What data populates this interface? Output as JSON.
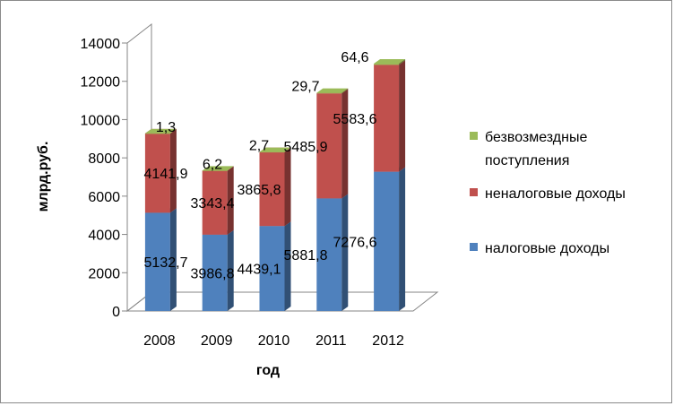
{
  "chart_data": {
    "type": "bar",
    "stacked": true,
    "three_d": true,
    "title": "",
    "xlabel": "год",
    "ylabel": "млрд.руб.",
    "ylim": [
      0,
      14000
    ],
    "yticks": [
      "0",
      "2000",
      "4000",
      "6000",
      "8000",
      "10000",
      "12000",
      "14000"
    ],
    "categories": [
      "2008",
      "2009",
      "2010",
      "2011",
      "2012"
    ],
    "series": [
      {
        "name": "налоговые доходы",
        "color": "#4F81BD",
        "values": [
          5132.7,
          3986.8,
          4439.1,
          5881.8,
          7276.6
        ],
        "labels": [
          "5132,7",
          "3986,8",
          "4439,1",
          "5881,8",
          "7276,6"
        ]
      },
      {
        "name": "неналоговые доходы",
        "color": "#C0504D",
        "values": [
          4141.9,
          3343.4,
          3865.8,
          5485.9,
          5583.6
        ],
        "labels": [
          "4141,9",
          "3343,4",
          "3865,8",
          "5485,9",
          "5583,6"
        ]
      },
      {
        "name": "безвозмездные поступления",
        "name_lines": [
          "безвозмездные",
          "поступления"
        ],
        "color": "#9BBB59",
        "values": [
          1.3,
          6.2,
          2.7,
          29.7,
          64.6
        ],
        "labels": [
          "1,3",
          "6,2",
          "2,7",
          "29,7",
          "64,6"
        ]
      }
    ],
    "grid": false,
    "legend_position": "right"
  }
}
